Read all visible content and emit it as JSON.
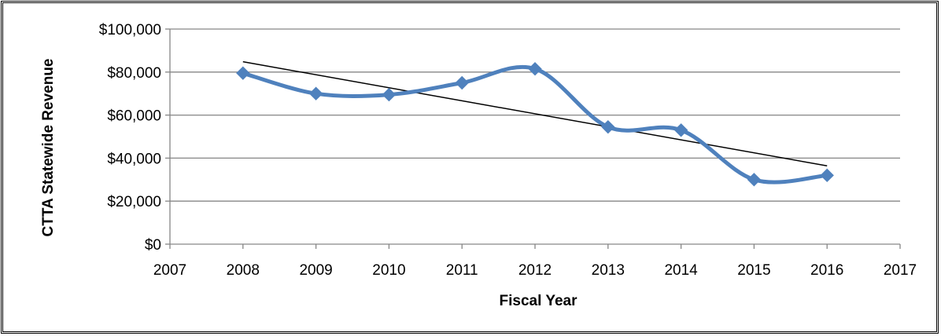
{
  "chart_data": {
    "type": "line",
    "title": "",
    "xlabel": "Fiscal Year",
    "ylabel": "CTTA Statewide Revenue",
    "xlim": [
      2007,
      2017
    ],
    "ylim": [
      0,
      100000
    ],
    "x_ticks": [
      "2007",
      "2008",
      "2009",
      "2010",
      "2011",
      "2012",
      "2013",
      "2014",
      "2015",
      "2016",
      "2017"
    ],
    "y_ticks": [
      "$0",
      "$20,000",
      "$40,000",
      "$60,000",
      "$80,000",
      "$100,000"
    ],
    "x_tick_values": [
      2007,
      2008,
      2009,
      2010,
      2011,
      2012,
      2013,
      2014,
      2015,
      2016,
      2017
    ],
    "y_tick_values": [
      0,
      20000,
      40000,
      60000,
      80000,
      100000
    ],
    "grid": true,
    "legend": "none",
    "series": [
      {
        "x": [
          2008,
          2009,
          2010,
          2011,
          2012,
          2013,
          2014,
          2015,
          2016
        ],
        "values": [
          79500,
          70000,
          69500,
          75000,
          81500,
          54500,
          53000,
          30000,
          32000
        ],
        "color": "#4F81BD",
        "smooth": true,
        "marker": "diamond"
      }
    ],
    "trendline": {
      "type": "linear",
      "color": "#000000",
      "x": [
        2008,
        2016
      ],
      "values": [
        84800,
        36400
      ]
    },
    "colors": {
      "series": "#4F81BD",
      "grid": "#868686",
      "axis": "#868686",
      "trend": "#000000"
    }
  }
}
